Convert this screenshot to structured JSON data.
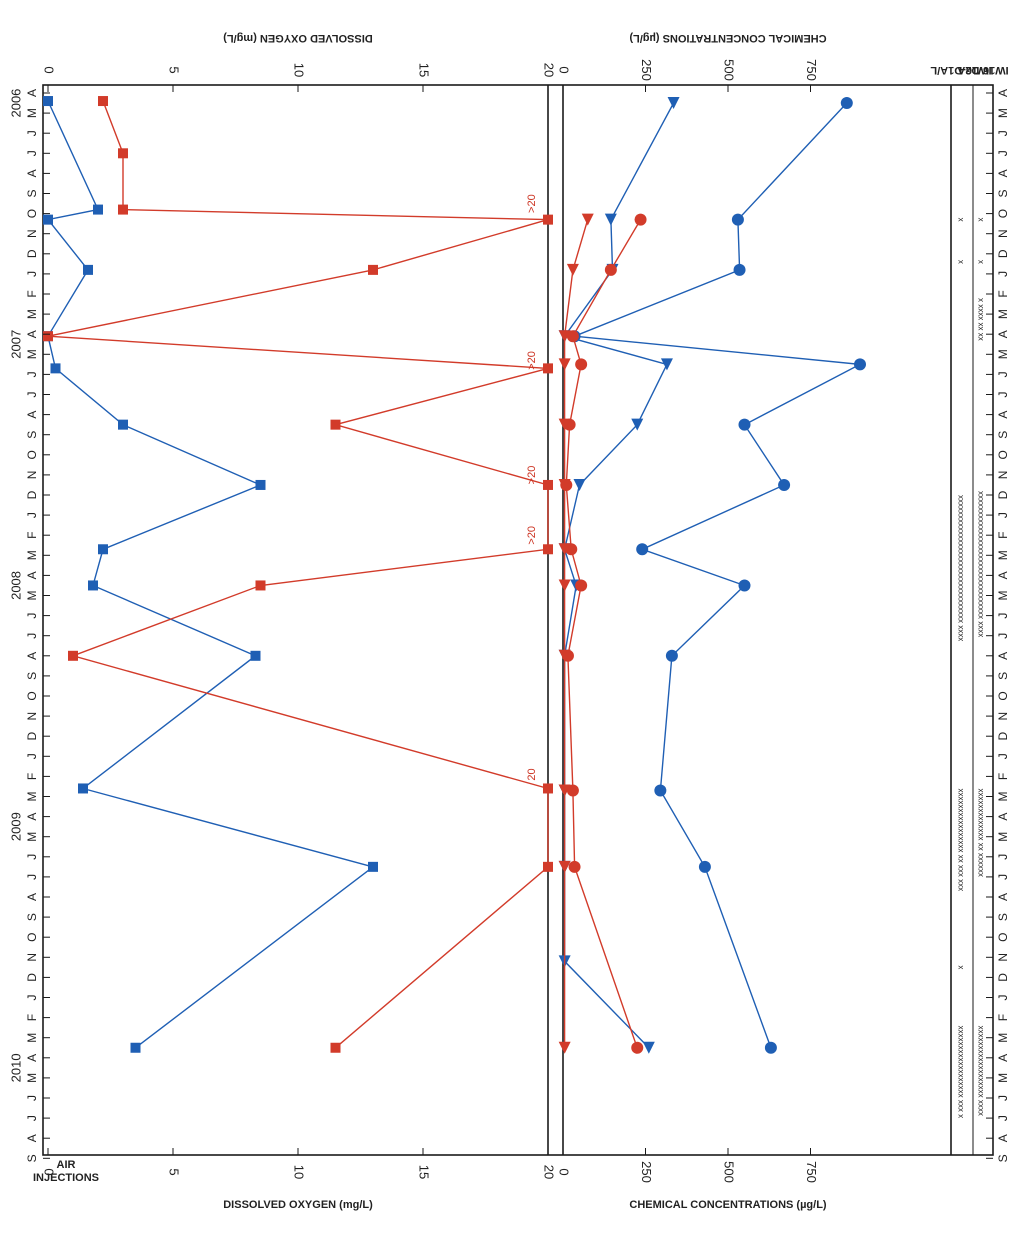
{
  "figure": {
    "side_labels": {
      "air_injections_line1": "AIR",
      "air_injections_line2": "INJECTIONS",
      "well_d2a": "IW16-D2A",
      "well_d1a": "IW16-D1A/L"
    },
    "years": [
      "2006",
      "2007",
      "2008",
      "2009",
      "2010"
    ],
    "months": [
      "A",
      "M",
      "J",
      "J",
      "A",
      "S",
      "O",
      "N",
      "D",
      "J",
      "F",
      "M",
      "A",
      "M",
      "J",
      "J",
      "A",
      "S",
      "O",
      "N",
      "D",
      "J",
      "F",
      "M",
      "A",
      "M",
      "J",
      "J",
      "A",
      "S",
      "O",
      "N",
      "D",
      "J",
      "F",
      "M",
      "A",
      "M",
      "J",
      "J",
      "A",
      "S",
      "O",
      "N",
      "D",
      "J",
      "F",
      "M",
      "A",
      "M",
      "J",
      "J",
      "A",
      "S"
    ],
    "air_injections": {
      "d2a_marks": [
        {
          "t": 6.2,
          "text": "x"
        },
        {
          "t": 8.3,
          "text": "x"
        },
        {
          "t": 10.2,
          "text": "xx xx xxxx x"
        },
        {
          "t": 19.8,
          "text": "xxxx xxxxxxxxxxxxxxxxxxxxxxxxxxxxxxxx"
        },
        {
          "t": 34.6,
          "text": "xxxxxx xx xxxxxxxxxxxxx"
        },
        {
          "t": 46.4,
          "text": "xxxx xxxxxxxxxxxxxxxxxx"
        }
      ],
      "d1a_marks": [
        {
          "t": 6.2,
          "text": "x"
        },
        {
          "t": 8.3,
          "text": "x"
        },
        {
          "t": 20.0,
          "text": "xxxx xxxxxxxxxxxxxxxxxxxxxxxxxxxxxxxx"
        },
        {
          "t": 34.6,
          "text": "xxx xxx xx xxxxxxxxxxxxxxxx"
        },
        {
          "t": 43.4,
          "text": "x"
        },
        {
          "t": 46.4,
          "text": "x xxx xxxxxxxxxxxxxxxxxx"
        }
      ]
    }
  },
  "chart_data": [
    {
      "type": "line",
      "ylabel": "CHEMICAL CONCENTRATIONS (µg/L)",
      "ylim": [
        0,
        1000
      ],
      "yticks": [
        "0",
        "250",
        "500",
        "750"
      ],
      "xlim": [
        "2006-04",
        "2010-09"
      ],
      "series": [
        {
          "color": "#1f5fb4",
          "marker": "circle",
          "points": [
            [
              0.5,
              860
            ],
            [
              6.3,
              530
            ],
            [
              8.8,
              535
            ],
            [
              12.1,
              35
            ],
            [
              13.5,
              900
            ],
            [
              16.5,
              550
            ],
            [
              19.5,
              670
            ],
            [
              22.7,
              240
            ],
            [
              24.5,
              550
            ],
            [
              28.0,
              330
            ],
            [
              34.7,
              295
            ],
            [
              38.5,
              430
            ],
            [
              47.5,
              630
            ]
          ]
        },
        {
          "color": "#1f5fb4",
          "marker": "triangle",
          "points": [
            [
              0.5,
              335
            ],
            [
              6.3,
              145
            ],
            [
              8.8,
              150
            ],
            [
              12.1,
              5
            ],
            [
              13.5,
              315
            ],
            [
              16.5,
              225
            ],
            [
              19.5,
              50
            ],
            [
              22.7,
              5
            ],
            [
              24.5,
              40
            ],
            [
              28.0,
              5
            ],
            [
              34.7,
              5
            ],
            [
              38.5,
              5
            ],
            [
              43.2,
              5
            ],
            [
              47.5,
              260
            ]
          ]
        },
        {
          "color": "#d23b2a",
          "marker": "circle",
          "points": [
            [
              6.3,
              235
            ],
            [
              8.8,
              145
            ],
            [
              12.1,
              30
            ],
            [
              13.5,
              55
            ],
            [
              16.5,
              20
            ],
            [
              19.5,
              10
            ],
            [
              22.7,
              25
            ],
            [
              24.5,
              55
            ],
            [
              28.0,
              15
            ],
            [
              34.7,
              30
            ],
            [
              38.5,
              35
            ],
            [
              47.5,
              225
            ]
          ]
        },
        {
          "color": "#d23b2a",
          "marker": "triangle",
          "points": [
            [
              6.3,
              75
            ],
            [
              8.8,
              30
            ],
            [
              12.1,
              5
            ],
            [
              13.5,
              5
            ],
            [
              16.5,
              5
            ],
            [
              19.5,
              5
            ],
            [
              22.7,
              5
            ],
            [
              24.5,
              5
            ],
            [
              28.0,
              5
            ],
            [
              34.7,
              5
            ],
            [
              38.5,
              5
            ],
            [
              47.5,
              5
            ]
          ]
        }
      ]
    },
    {
      "type": "line",
      "ylabel": "DISSOLVED OXYGEN (mg/L)",
      "ylim": [
        0,
        20
      ],
      "yticks": [
        "0",
        "5",
        "10",
        "15",
        "20"
      ],
      "xlim": [
        "2006-04",
        "2010-09"
      ],
      "annotations": [
        {
          "x": 6.2,
          "text": ">20"
        },
        {
          "x": 14.0,
          "text": ">20"
        },
        {
          "x": 19.7,
          "text": ">20"
        },
        {
          "x": 22.7,
          "text": ">20"
        },
        {
          "x": 34.6,
          "text": "20"
        }
      ],
      "series": [
        {
          "color": "#1f5fb4",
          "marker": "square",
          "points": [
            [
              0.4,
              0
            ],
            [
              5.8,
              2
            ],
            [
              6.3,
              0
            ],
            [
              8.8,
              1.6
            ],
            [
              12.1,
              0
            ],
            [
              13.7,
              0.3
            ],
            [
              16.5,
              3
            ],
            [
              19.5,
              8.5
            ],
            [
              22.7,
              2.2
            ],
            [
              24.5,
              1.8
            ],
            [
              28.0,
              8.3
            ],
            [
              34.6,
              1.4
            ],
            [
              38.5,
              13
            ],
            [
              47.5,
              3.5
            ]
          ]
        },
        {
          "color": "#d23b2a",
          "marker": "square",
          "points": [
            [
              0.4,
              2.2
            ],
            [
              3.0,
              3
            ],
            [
              5.8,
              3
            ],
            [
              6.3,
              20
            ],
            [
              8.8,
              13
            ],
            [
              12.1,
              0
            ],
            [
              13.7,
              20
            ],
            [
              16.5,
              11.5
            ],
            [
              19.5,
              20
            ],
            [
              22.7,
              20
            ],
            [
              24.5,
              8.5
            ],
            [
              28.0,
              1
            ],
            [
              34.6,
              20
            ],
            [
              38.5,
              20
            ],
            [
              47.5,
              11.5
            ]
          ]
        }
      ]
    }
  ]
}
